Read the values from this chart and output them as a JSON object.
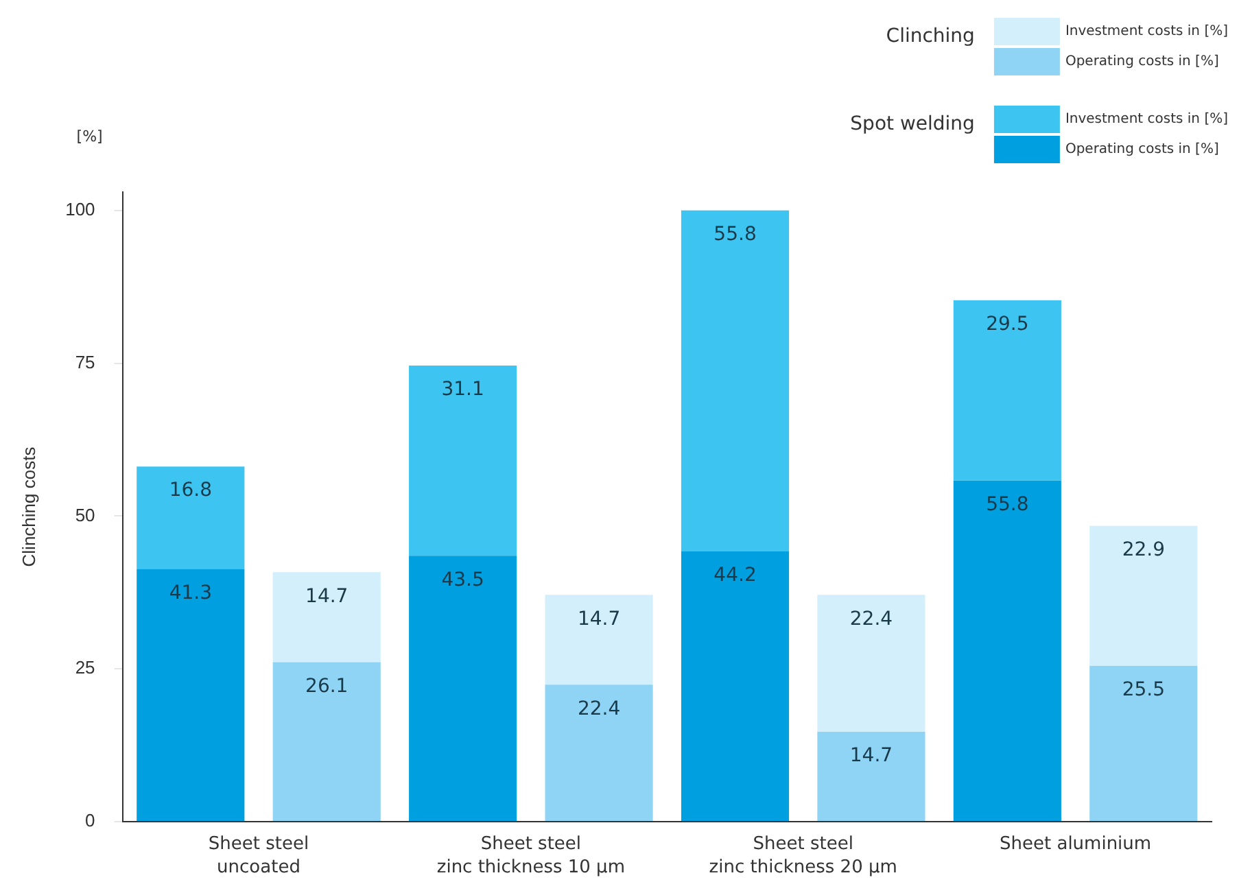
{
  "chart_data": {
    "type": "bar",
    "stacked": true,
    "ylabel": "Clinching costs",
    "annotations": [
      "[%]",
      "Clinching",
      "Spot welding"
    ],
    "categories": [
      "Sheet steel\nuncoated",
      null,
      "Sheet steel\nzinc thickness 10 µm",
      null,
      "Sheet steel\nzinc thickness 20 µm",
      null,
      "Sheet aluminium",
      null
    ],
    "series": [
      {
        "name": "Operating costs in [%]",
        "color": "#009fdf",
        "values": [
          41.3,
          null,
          43.5,
          null,
          44.2,
          null,
          55.8,
          null
        ]
      },
      {
        "name": "Investment costs in [%]",
        "color": "#3ec4f0",
        "values": [
          16.8,
          null,
          31.1,
          null,
          55.8,
          null,
          29.5,
          null
        ]
      },
      {
        "name": "Operating costs in [%]",
        "color": "#8fd4f4",
        "values": [
          null,
          26.1,
          null,
          22.4,
          null,
          14.7,
          null,
          25.5
        ]
      },
      {
        "name": "Investment costs in [%]",
        "color": "#d3effb",
        "values": [
          null,
          14.7,
          null,
          14.7,
          null,
          22.4,
          null,
          22.9
        ]
      }
    ],
    "ylim": [
      0,
      103
    ],
    "yticks": [
      0,
      25,
      50,
      75,
      100
    ],
    "grid": false,
    "legend": "top right",
    "data_labels": true
  }
}
